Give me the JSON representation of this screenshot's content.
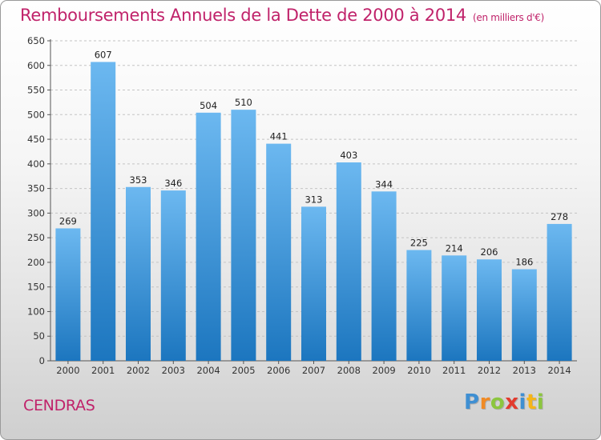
{
  "header": {
    "title": "Remboursements Annuels de la Dette de 2000 à 2014",
    "subtitle": "(en milliers d'€)"
  },
  "footer": {
    "commune": "CENDRAS",
    "logo_letters": [
      {
        "ch": "P",
        "color": "#3f8fd2"
      },
      {
        "ch": "r",
        "color": "#f08a24"
      },
      {
        "ch": "o",
        "color": "#8cc63f"
      },
      {
        "ch": "x",
        "color": "#e23b2e"
      },
      {
        "ch": "i",
        "color": "#3f8fd2"
      },
      {
        "ch": "t",
        "color": "#f5b51a"
      },
      {
        "ch": "i",
        "color": "#8cc63f"
      }
    ]
  },
  "colors": {
    "bar_top": "#6cb8f0",
    "bar_bottom": "#1c76bf",
    "title": "#c0226a",
    "grid": "#c4c4c4"
  },
  "chart_data": {
    "type": "bar",
    "title": "Remboursements Annuels de la Dette de 2000 à 2014",
    "xlabel": "",
    "ylabel": "",
    "categories": [
      "2000",
      "2001",
      "2002",
      "2003",
      "2004",
      "2005",
      "2006",
      "2007",
      "2008",
      "2009",
      "2010",
      "2011",
      "2012",
      "2013",
      "2014"
    ],
    "values": [
      269,
      607,
      353,
      346,
      504,
      510,
      441,
      313,
      403,
      344,
      225,
      214,
      206,
      186,
      278
    ],
    "ylim": [
      0,
      650
    ],
    "yticks": [
      0,
      50,
      100,
      150,
      200,
      250,
      300,
      350,
      400,
      450,
      500,
      550,
      600,
      650
    ],
    "grid": "dashed horizontal",
    "data_labels": true
  }
}
